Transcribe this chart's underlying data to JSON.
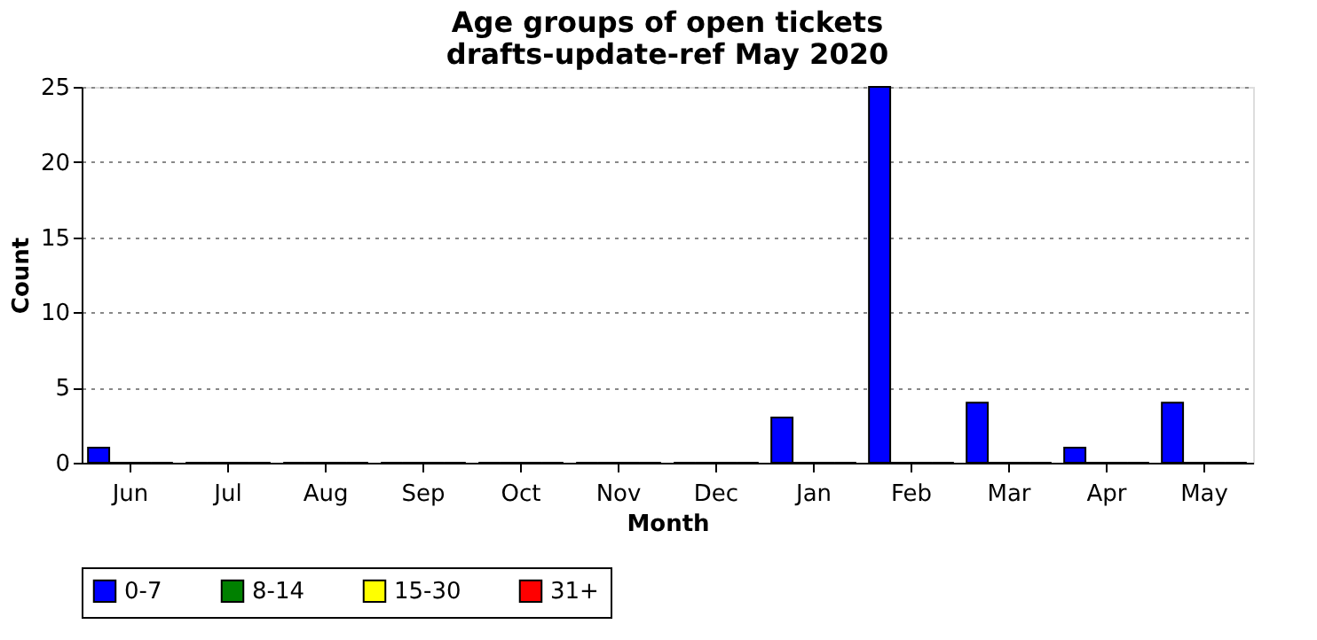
{
  "chart_data": {
    "type": "bar",
    "title": [
      "Age groups of open tickets",
      "drafts-update-ref May 2020"
    ],
    "xlabel": "Month",
    "ylabel": "Count",
    "categories": [
      "Jun",
      "Jul",
      "Aug",
      "Sep",
      "Oct",
      "Nov",
      "Dec",
      "Jan",
      "Feb",
      "Mar",
      "Apr",
      "May"
    ],
    "series": [
      {
        "name": "0-7",
        "color": "#0000ff",
        "values": [
          1,
          0,
          0,
          0,
          0,
          0,
          0,
          3,
          25,
          4,
          1,
          4
        ]
      },
      {
        "name": "8-14",
        "color": "#008000",
        "values": [
          0,
          0,
          0,
          0,
          0,
          0,
          0,
          0,
          0,
          0,
          0,
          0
        ]
      },
      {
        "name": "15-30",
        "color": "#ffff00",
        "values": [
          0,
          0,
          0,
          0,
          0,
          0,
          0,
          0,
          0,
          0,
          0,
          0
        ]
      },
      {
        "name": "31+",
        "color": "#ff0000",
        "values": [
          0,
          0,
          0,
          0,
          0,
          0,
          0,
          0,
          0,
          0,
          0,
          0
        ]
      }
    ],
    "ylim": [
      0,
      25
    ],
    "yticks": [
      0,
      5,
      10,
      15,
      20,
      25
    ],
    "grid": "y",
    "legend": "bottom"
  }
}
